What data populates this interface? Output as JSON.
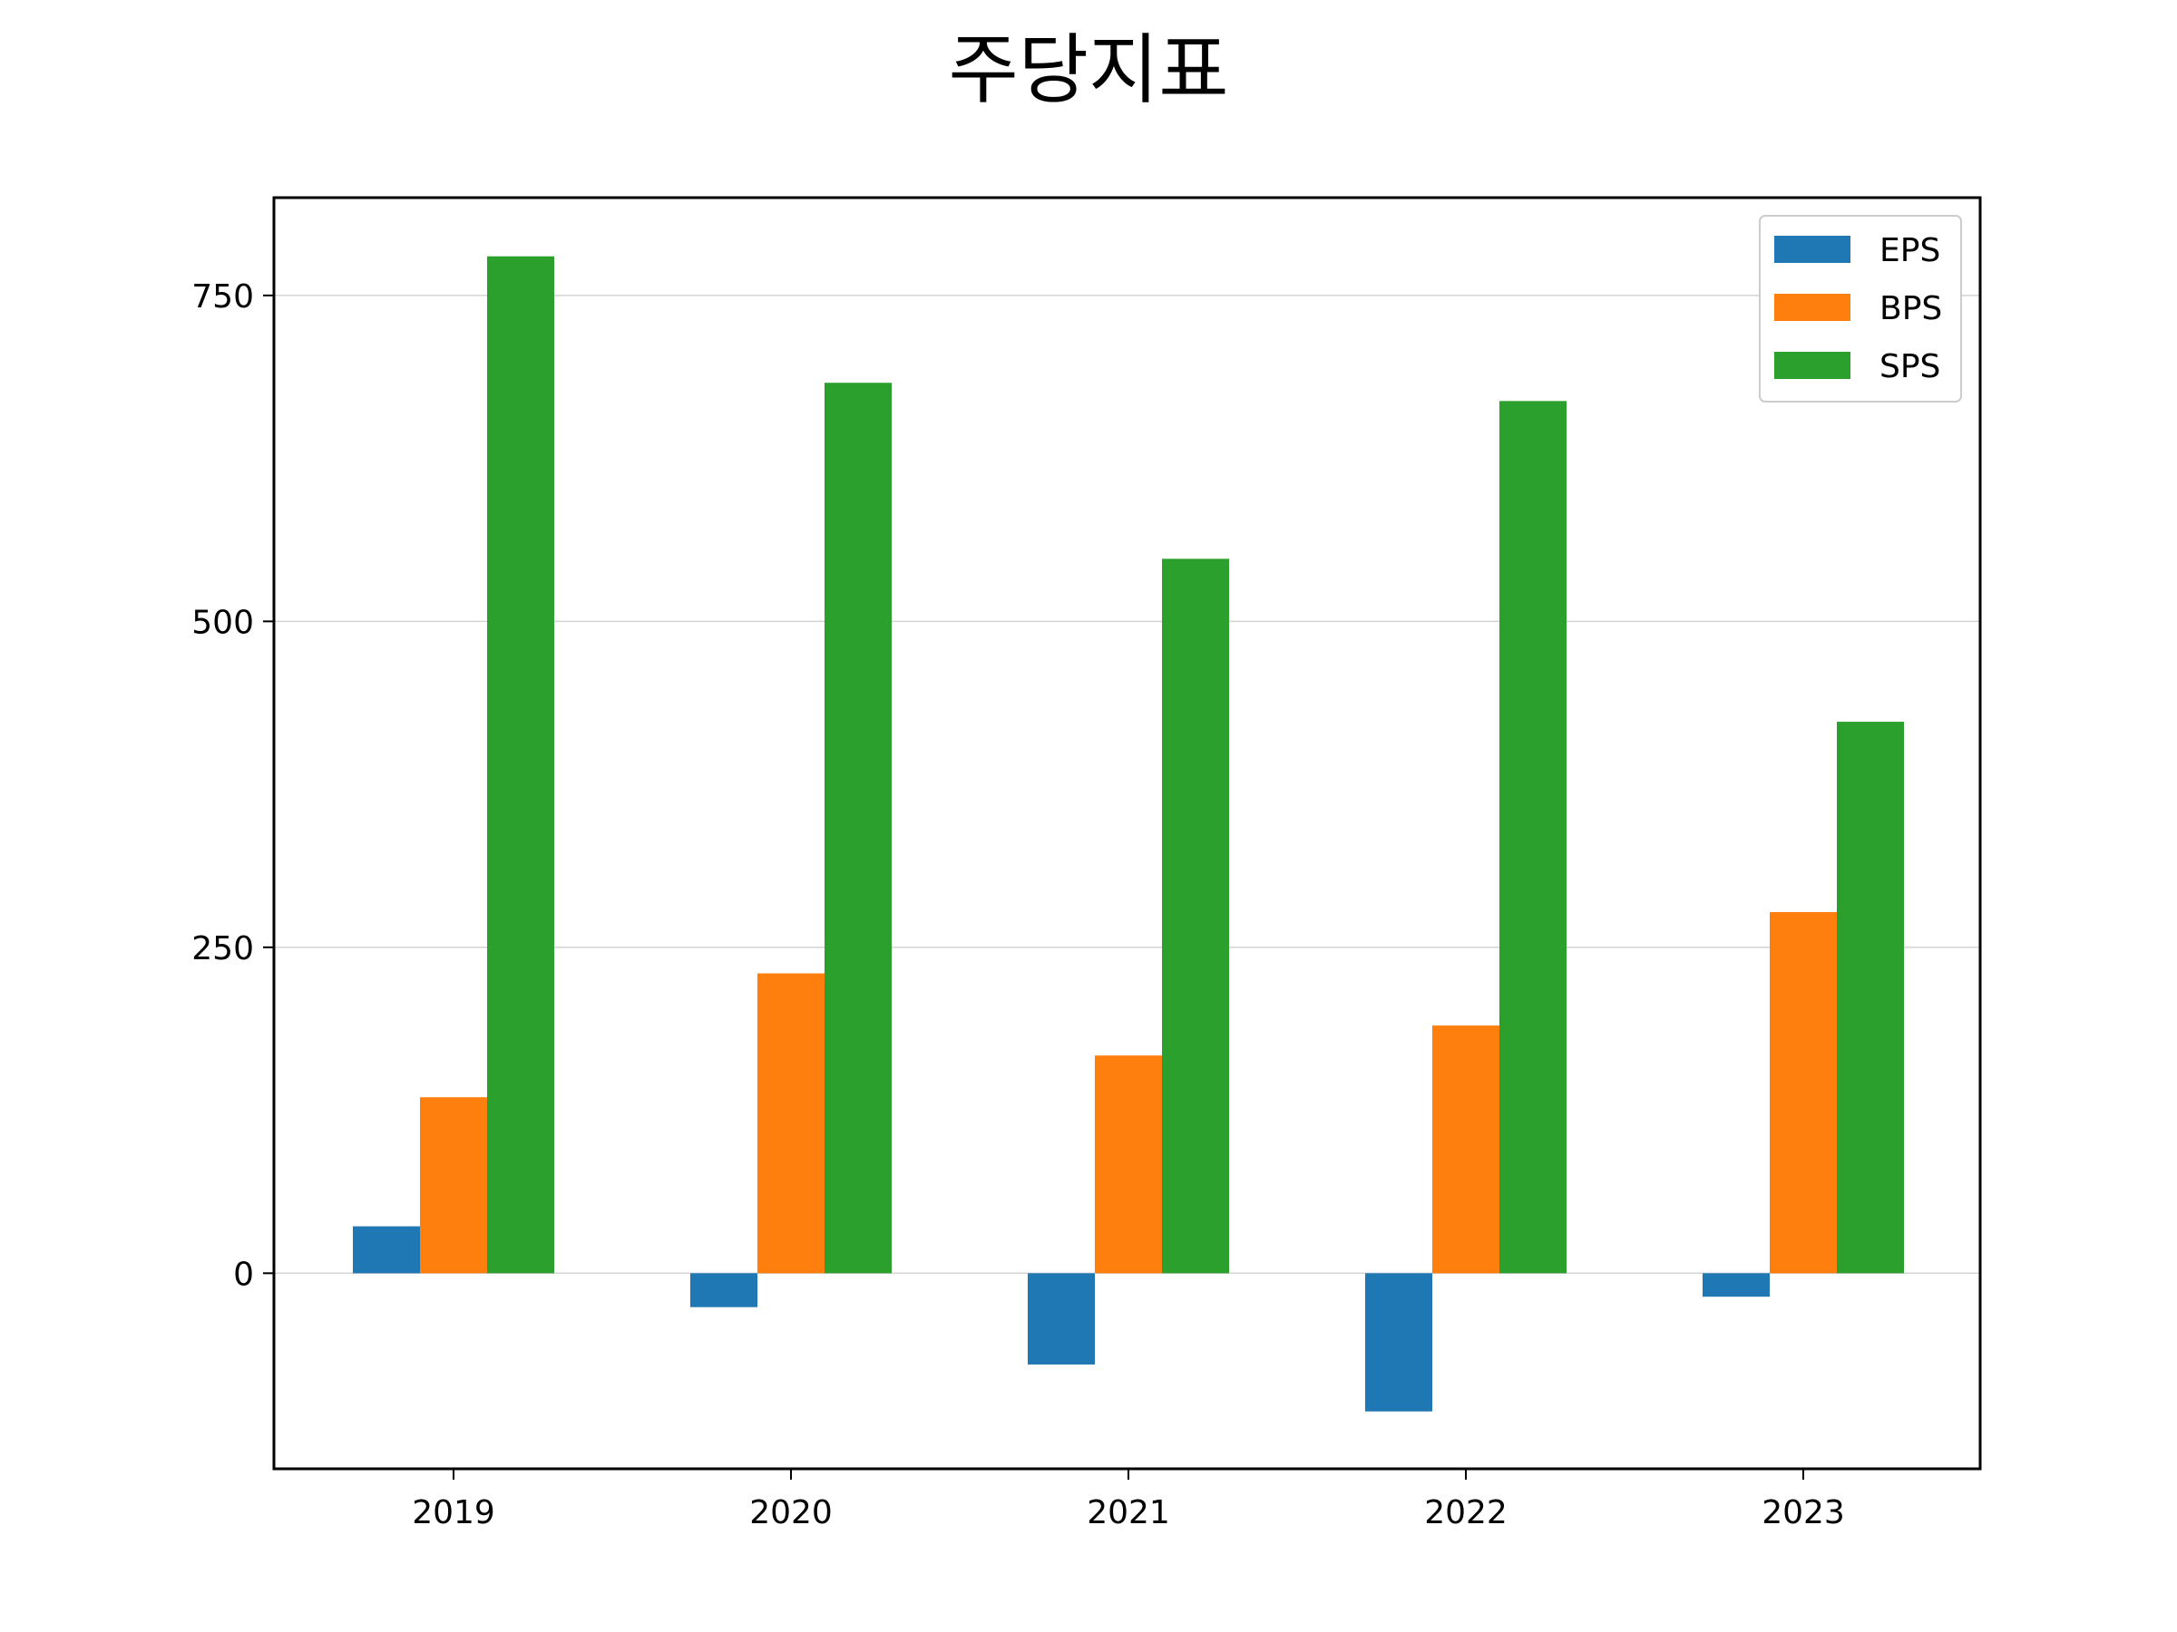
{
  "chart_data": {
    "type": "bar",
    "title": "주당지표",
    "categories": [
      "2019",
      "2020",
      "2021",
      "2022",
      "2023"
    ],
    "series": [
      {
        "name": "EPS",
        "color": "#1f77b4",
        "values": [
          36,
          -26,
          -70,
          -106,
          -18
        ]
      },
      {
        "name": "BPS",
        "color": "#ff7f0e",
        "values": [
          135,
          230,
          167,
          190,
          277
        ]
      },
      {
        "name": "SPS",
        "color": "#2ca02c",
        "values": [
          780,
          683,
          548,
          669,
          423
        ]
      }
    ],
    "ylim": [
      -150,
      825
    ],
    "yticks": [
      0,
      250,
      500,
      750
    ],
    "grid": "y",
    "legend": "top-right"
  }
}
